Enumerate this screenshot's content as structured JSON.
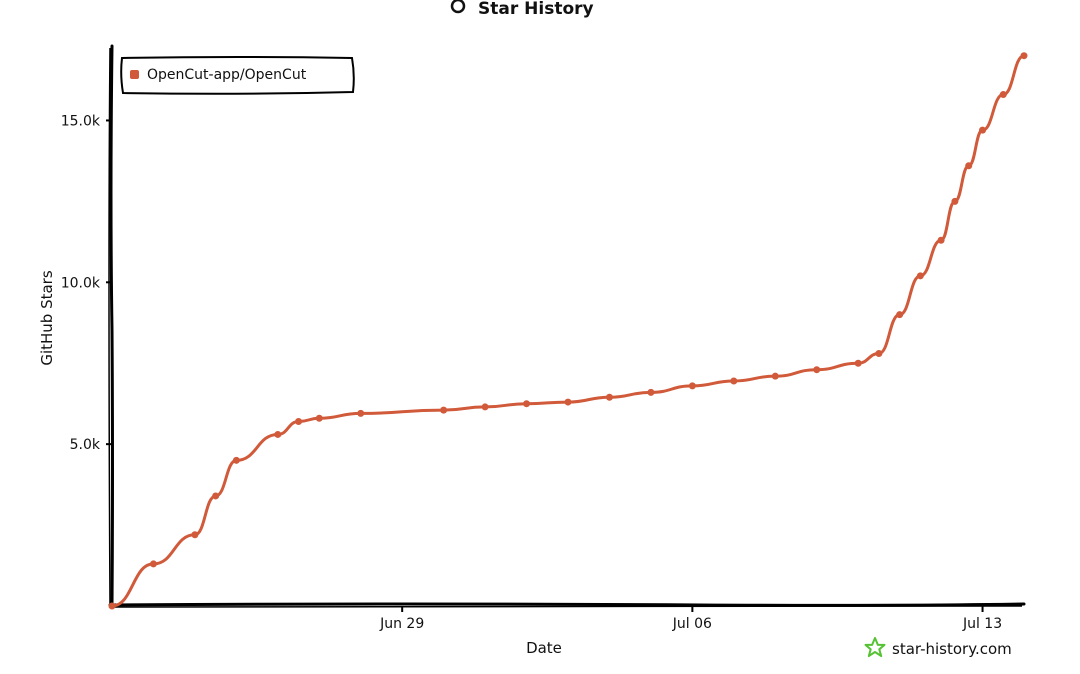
{
  "header": {
    "title": "Star History",
    "title_icon": "github-icon"
  },
  "watermark": {
    "text": "star-history.com",
    "icon": "star-outline-icon",
    "color": "#54c232"
  },
  "chart_data": {
    "type": "line",
    "title": "Star History",
    "xlabel": "Date",
    "ylabel": "GitHub Stars",
    "x_ticks": [
      "Jun 29",
      "Jul 06",
      "Jul 13"
    ],
    "y_ticks": [
      "5.0k",
      "10.0k",
      "15.0k"
    ],
    "y_tick_values": [
      5000,
      10000,
      15000
    ],
    "ylim": [
      0,
      17300
    ],
    "xlim": [
      "2025-06-22",
      "2025-07-14"
    ],
    "grid": false,
    "legend_position": "top-left",
    "series": [
      {
        "name": "OpenCut-app/OpenCut",
        "color": "#d05a3a",
        "points": [
          {
            "date": "2025-06-22",
            "stars": 0
          },
          {
            "date": "2025-06-23",
            "stars": 1300
          },
          {
            "date": "2025-06-24",
            "stars": 2200
          },
          {
            "date": "2025-06-24",
            "stars": 3400
          },
          {
            "date": "2025-06-25",
            "stars": 4500
          },
          {
            "date": "2025-06-26",
            "stars": 5300
          },
          {
            "date": "2025-06-26",
            "stars": 5700
          },
          {
            "date": "2025-06-27",
            "stars": 5800
          },
          {
            "date": "2025-06-28",
            "stars": 5950
          },
          {
            "date": "2025-06-30",
            "stars": 6050
          },
          {
            "date": "2025-07-01",
            "stars": 6150
          },
          {
            "date": "2025-07-02",
            "stars": 6250
          },
          {
            "date": "2025-07-03",
            "stars": 6300
          },
          {
            "date": "2025-07-04",
            "stars": 6450
          },
          {
            "date": "2025-07-05",
            "stars": 6600
          },
          {
            "date": "2025-07-06",
            "stars": 6800
          },
          {
            "date": "2025-07-07",
            "stars": 6950
          },
          {
            "date": "2025-07-08",
            "stars": 7100
          },
          {
            "date": "2025-07-09",
            "stars": 7300
          },
          {
            "date": "2025-07-10",
            "stars": 7500
          },
          {
            "date": "2025-07-10",
            "stars": 7800
          },
          {
            "date": "2025-07-11",
            "stars": 9000
          },
          {
            "date": "2025-07-11",
            "stars": 10200
          },
          {
            "date": "2025-07-12",
            "stars": 11300
          },
          {
            "date": "2025-07-12",
            "stars": 12500
          },
          {
            "date": "2025-07-12",
            "stars": 13600
          },
          {
            "date": "2025-07-13",
            "stars": 14700
          },
          {
            "date": "2025-07-13",
            "stars": 15800
          },
          {
            "date": "2025-07-14",
            "stars": 17000
          }
        ]
      }
    ]
  }
}
